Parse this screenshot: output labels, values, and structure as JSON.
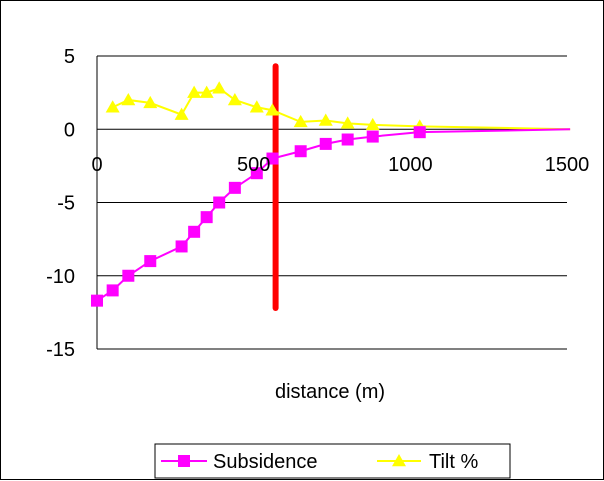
{
  "chart_data": {
    "type": "line",
    "title": "",
    "xlabel": "distance (m)",
    "ylabel": "",
    "xlim": [
      0,
      1500
    ],
    "ylim": [
      -15,
      5
    ],
    "x_ticks": [
      0,
      500,
      1000,
      1500
    ],
    "y_ticks": [
      5,
      0,
      -5,
      -10,
      -15
    ],
    "x_tick_labels": [
      "0",
      "500",
      "1000",
      "1500"
    ],
    "y_tick_labels": [
      "5",
      "0",
      "-5",
      "-10",
      "-15"
    ],
    "grid": "horizontal",
    "legend_position": "bottom",
    "series": [
      {
        "name": "Subsidence",
        "color": "#FF00FF",
        "marker": "square",
        "x": [
          0,
          50,
          100,
          170,
          270,
          310,
          350,
          390,
          440,
          510,
          560,
          650,
          730,
          800,
          880,
          1030,
          1510
        ],
        "y": [
          -11.7,
          -11.0,
          -10.0,
          -9.0,
          -8.0,
          -7.0,
          -6.0,
          -5.0,
          -4.0,
          -3.0,
          -2.0,
          -1.5,
          -1.0,
          -0.7,
          -0.5,
          -0.2,
          0
        ]
      },
      {
        "name": "Tilt %",
        "color": "#FFFF00",
        "marker": "triangle",
        "x": [
          50,
          100,
          170,
          270,
          310,
          350,
          390,
          440,
          510,
          560,
          650,
          730,
          800,
          880,
          1030,
          1510
        ],
        "y": [
          1.5,
          2.0,
          1.8,
          1.0,
          2.5,
          2.5,
          2.8,
          2.0,
          1.5,
          1.3,
          0.5,
          0.6,
          0.4,
          0.3,
          0.2,
          0
        ]
      }
    ],
    "reference_line": {
      "x": 570,
      "y_range": [
        -12.2,
        4.3
      ],
      "color": "#FF0000"
    }
  }
}
